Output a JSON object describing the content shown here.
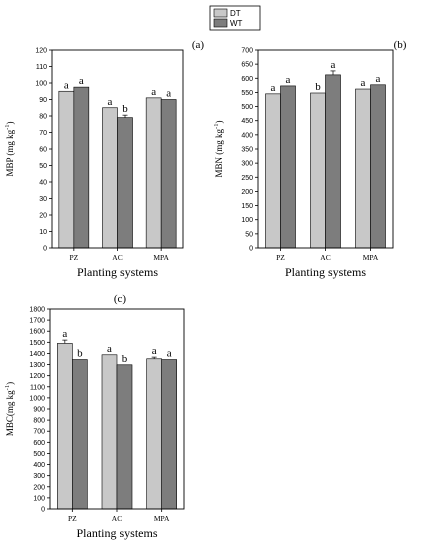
{
  "legend": [
    {
      "label": "DT",
      "color": "#c8c8c8"
    },
    {
      "label": "WT",
      "color": "#7d7d7d"
    }
  ],
  "chart_data": [
    {
      "type": "bar",
      "panel_label": "(a)",
      "title": "",
      "xlabel": "Planting systems",
      "ylabel_main": "MBP (mg kg",
      "ylabel_sup": "-1",
      "ylabel_tail": ")",
      "categories": [
        "PZ",
        "AC",
        "MPA"
      ],
      "ylim": [
        0,
        120
      ],
      "yticks": [
        0,
        10,
        20,
        30,
        40,
        50,
        60,
        70,
        80,
        90,
        100,
        110,
        120
      ],
      "series": [
        {
          "name": "DT",
          "values": [
            95,
            85,
            91
          ],
          "errors": [
            0,
            0,
            0
          ],
          "sig": [
            "a",
            "a",
            "a"
          ]
        },
        {
          "name": "WT",
          "values": [
            97.5,
            79,
            90
          ],
          "errors": [
            0,
            1.5,
            0
          ],
          "sig": [
            "a",
            "b",
            "a"
          ]
        }
      ]
    },
    {
      "type": "bar",
      "panel_label": "(b)",
      "title": "",
      "xlabel": "Planting systems",
      "ylabel_main": "MBN (mg kg",
      "ylabel_sup": "-1",
      "ylabel_tail": ")",
      "categories": [
        "PZ",
        "AC",
        "MPA"
      ],
      "ylim": [
        0,
        700
      ],
      "yticks": [
        0,
        50,
        100,
        150,
        200,
        250,
        300,
        350,
        400,
        450,
        500,
        550,
        600,
        650,
        700
      ],
      "series": [
        {
          "name": "DT",
          "values": [
            545,
            548,
            562
          ],
          "errors": [
            0,
            0,
            0
          ],
          "sig": [
            "a",
            "b",
            "a"
          ]
        },
        {
          "name": "WT",
          "values": [
            573,
            612,
            577
          ],
          "errors": [
            0,
            14,
            0
          ],
          "sig": [
            "a",
            "a",
            "a"
          ]
        }
      ]
    },
    {
      "type": "bar",
      "panel_label": "(c)",
      "title": "",
      "xlabel": "Planting systems",
      "ylabel_main": "MBC(mg kg",
      "ylabel_sup": "-1",
      "ylabel_tail": ")",
      "categories": [
        "PZ",
        "AC",
        "MPA"
      ],
      "ylim": [
        0,
        1800
      ],
      "yticks": [
        0,
        100,
        200,
        300,
        400,
        500,
        600,
        700,
        800,
        900,
        1000,
        1100,
        1200,
        1300,
        1400,
        1500,
        1600,
        1700,
        1800
      ],
      "series": [
        {
          "name": "DT",
          "values": [
            1490,
            1388,
            1352
          ],
          "errors": [
            30,
            0,
            15
          ],
          "sig": [
            "a",
            "a",
            "a"
          ]
        },
        {
          "name": "WT",
          "values": [
            1345,
            1298,
            1345
          ],
          "errors": [
            0,
            0,
            0
          ],
          "sig": [
            "b",
            "b",
            "a"
          ]
        }
      ]
    }
  ]
}
